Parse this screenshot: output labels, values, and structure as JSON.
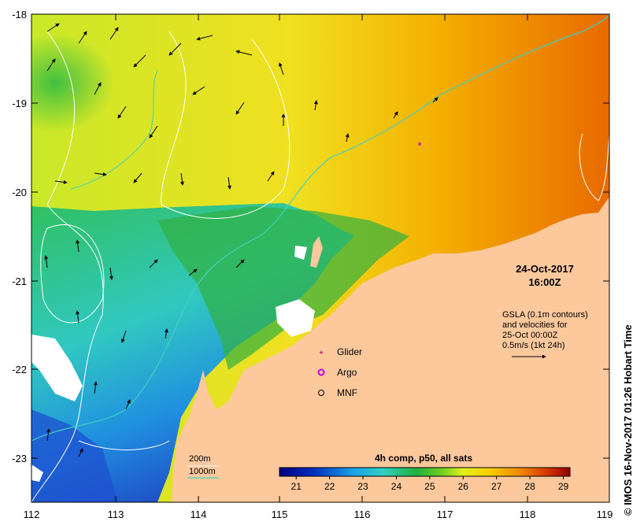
{
  "map": {
    "date": "24-Oct-2017",
    "time": "16:00Z",
    "gsla_lines": [
      "GSLA (0.1m contours)",
      "and velocities for",
      "25-Oct 00:00Z",
      "0.5m/s (1kt 24h)"
    ],
    "legend": {
      "glider": "Glider",
      "argo": "Argo",
      "mnf": "MNF"
    },
    "depth_legend": {
      "shallow": "200m",
      "deep": "1000m"
    },
    "colorbar": {
      "title": "4h comp, p50, all sats",
      "ticks": [
        "21",
        "22",
        "23",
        "24",
        "25",
        "26",
        "27",
        "28",
        "29"
      ],
      "range": [
        20.5,
        29.2
      ]
    },
    "x_ticks": [
      "112",
      "113",
      "114",
      "115",
      "116",
      "117",
      "118",
      "119"
    ],
    "y_ticks": [
      "-18",
      "-19",
      "-20",
      "-21",
      "-22",
      "-23"
    ],
    "credit": "© IMOS 16-Nov-2017 01:26 Hobart Time"
  },
  "colors": {
    "land": "#fcc89c",
    "contour_200m": "#ffffff",
    "contour_1000m": "#40d0c0",
    "glider": "#d0308a",
    "argo": "#d000d0"
  }
}
